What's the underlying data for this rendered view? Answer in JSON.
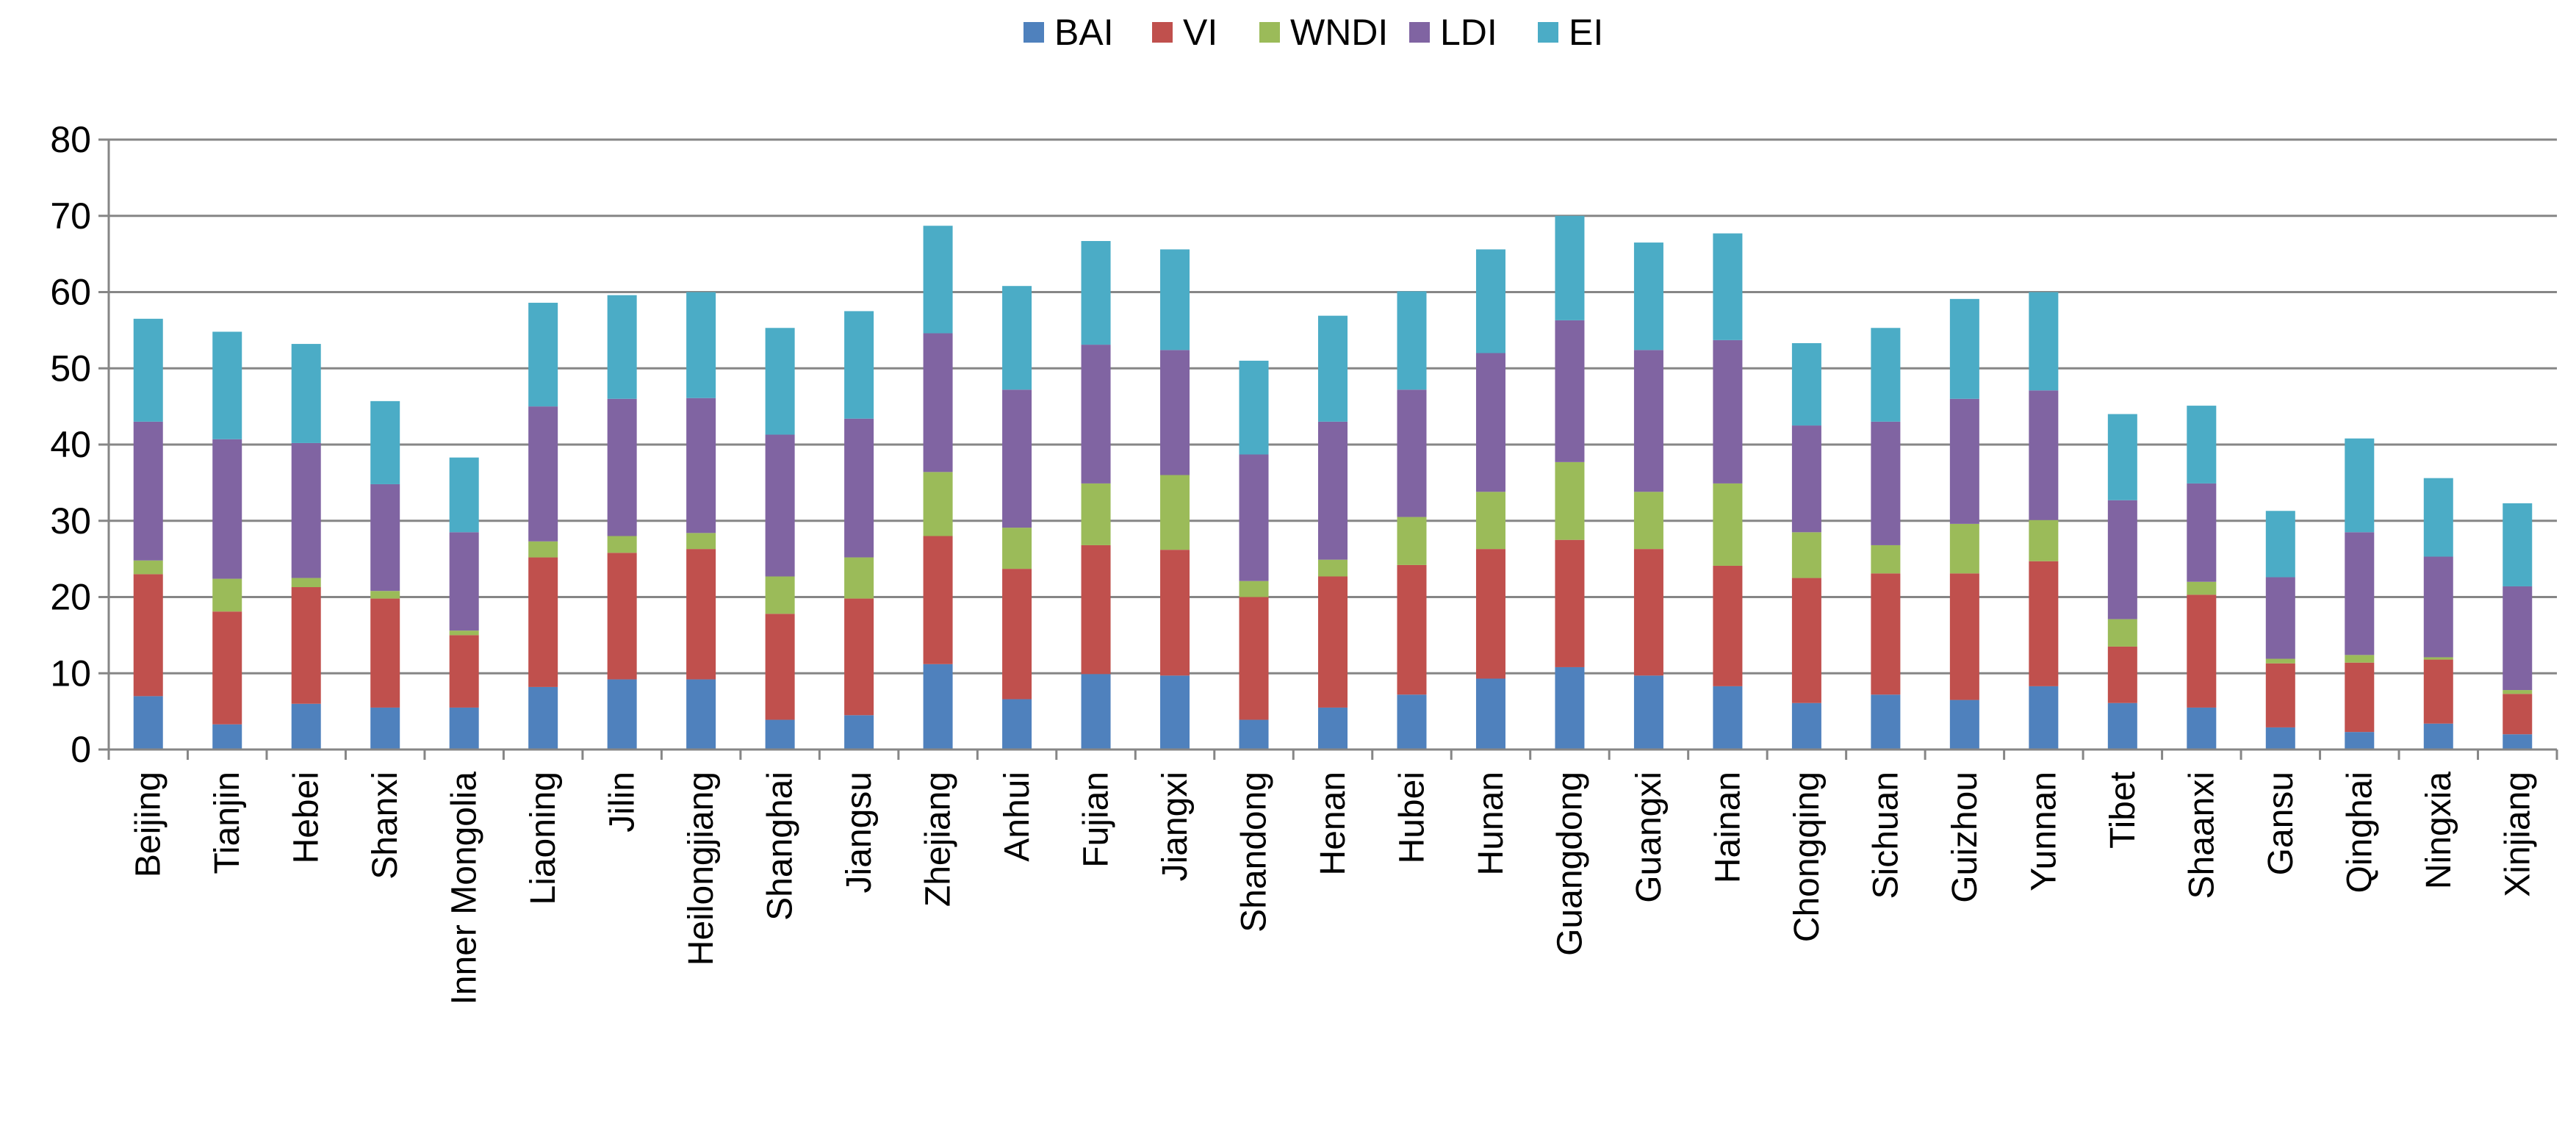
{
  "chart_data": {
    "type": "bar",
    "stacked": true,
    "title": "",
    "xlabel": "",
    "ylabel": "",
    "ylim": [
      0,
      80
    ],
    "yticks": [
      0,
      10,
      20,
      30,
      40,
      50,
      60,
      70,
      80
    ],
    "grid": "horizontal",
    "legend_position": "top-center",
    "categories": [
      "Beijing",
      "Tianjin",
      "Hebei",
      "Shanxi",
      "Inner Mongolia",
      "Liaoning",
      "Jilin",
      "Heilongjiang",
      "Shanghai",
      "Jiangsu",
      "Zhejiang",
      "Anhui",
      "Fujian",
      "Jiangxi",
      "Shandong",
      "Henan",
      "Hubei",
      "Hunan",
      "Guangdong",
      "Guangxi",
      "Hainan",
      "Chongqing",
      "Sichuan",
      "Guizhou",
      "Yunnan",
      "Tibet",
      "Shaanxi",
      "Gansu",
      "Qinghai",
      "Ningxia",
      "Xinjiang"
    ],
    "series": [
      {
        "name": "BAI",
        "color": "#4F81BD",
        "values": [
          7.0,
          3.3,
          6.0,
          5.5,
          5.5,
          8.2,
          9.2,
          9.2,
          3.9,
          4.5,
          11.2,
          6.6,
          9.9,
          9.7,
          3.9,
          5.5,
          7.2,
          9.3,
          10.8,
          9.7,
          8.3,
          6.1,
          7.2,
          6.5,
          8.3,
          6.1,
          5.5,
          2.9,
          2.3,
          3.4,
          2.0
        ]
      },
      {
        "name": "VI",
        "color": "#C0504D",
        "values": [
          16.0,
          14.8,
          15.3,
          14.3,
          9.5,
          17.0,
          16.6,
          17.1,
          13.9,
          15.3,
          16.8,
          17.1,
          16.9,
          16.5,
          16.1,
          17.2,
          17.0,
          17.0,
          16.7,
          16.6,
          15.8,
          16.4,
          15.9,
          16.6,
          16.4,
          7.4,
          14.8,
          8.4,
          9.1,
          8.4,
          5.3
        ]
      },
      {
        "name": "WNDI",
        "color": "#9BBB59",
        "values": [
          1.8,
          4.3,
          1.2,
          1.0,
          0.6,
          2.1,
          2.2,
          2.1,
          4.9,
          5.4,
          8.4,
          5.4,
          8.1,
          9.8,
          2.1,
          2.2,
          6.3,
          7.5,
          10.2,
          7.5,
          10.8,
          6.0,
          3.7,
          6.5,
          5.4,
          3.6,
          1.7,
          0.6,
          1.0,
          0.3,
          0.5
        ]
      },
      {
        "name": "LDI",
        "color": "#8064A2",
        "values": [
          18.2,
          18.3,
          17.7,
          14.0,
          12.9,
          17.7,
          18.0,
          17.7,
          18.6,
          18.2,
          18.2,
          18.1,
          18.2,
          16.4,
          16.6,
          18.1,
          16.7,
          18.2,
          18.6,
          18.6,
          18.8,
          14.0,
          16.2,
          16.4,
          17.0,
          15.6,
          12.9,
          10.7,
          16.1,
          13.2,
          13.6
        ]
      },
      {
        "name": "EI",
        "color": "#4BACC6",
        "values": [
          13.5,
          14.1,
          13.0,
          10.9,
          9.8,
          13.6,
          13.6,
          13.9,
          14.0,
          14.1,
          14.1,
          13.6,
          13.6,
          13.2,
          12.3,
          13.9,
          12.9,
          13.6,
          13.7,
          14.1,
          14.0,
          10.8,
          12.3,
          13.1,
          12.9,
          11.3,
          10.2,
          8.7,
          12.3,
          10.3,
          10.9
        ]
      }
    ]
  }
}
